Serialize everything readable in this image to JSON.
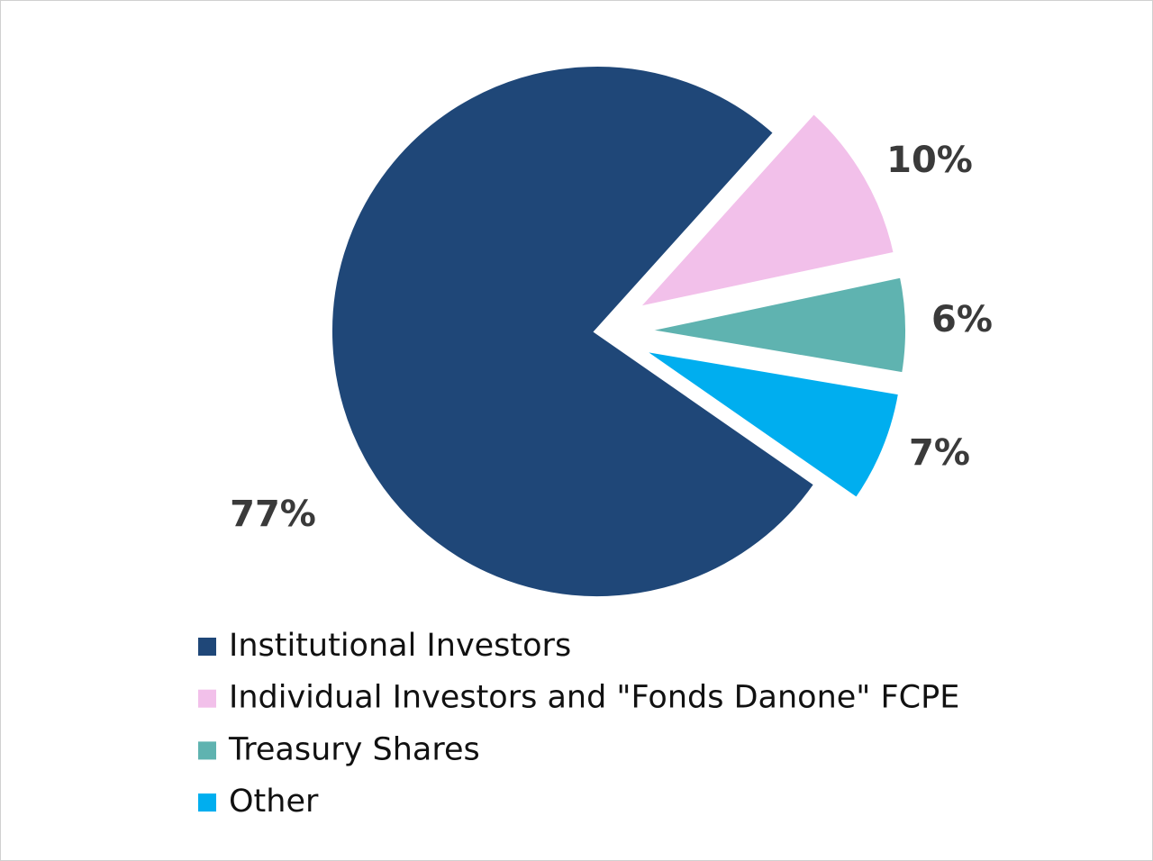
{
  "chart_data": {
    "type": "pie",
    "categories": [
      "Institutional Investors",
      "Individual Investors and \"Fonds Danone\" FCPE",
      "Treasury Shares",
      "Other"
    ],
    "values": [
      77,
      10,
      6,
      7
    ],
    "value_labels": [
      "77%",
      "10%",
      "6%",
      "7%"
    ],
    "colors": [
      "#1f4778",
      "#f2c0ea",
      "#5fb3b0",
      "#00aeef"
    ]
  }
}
